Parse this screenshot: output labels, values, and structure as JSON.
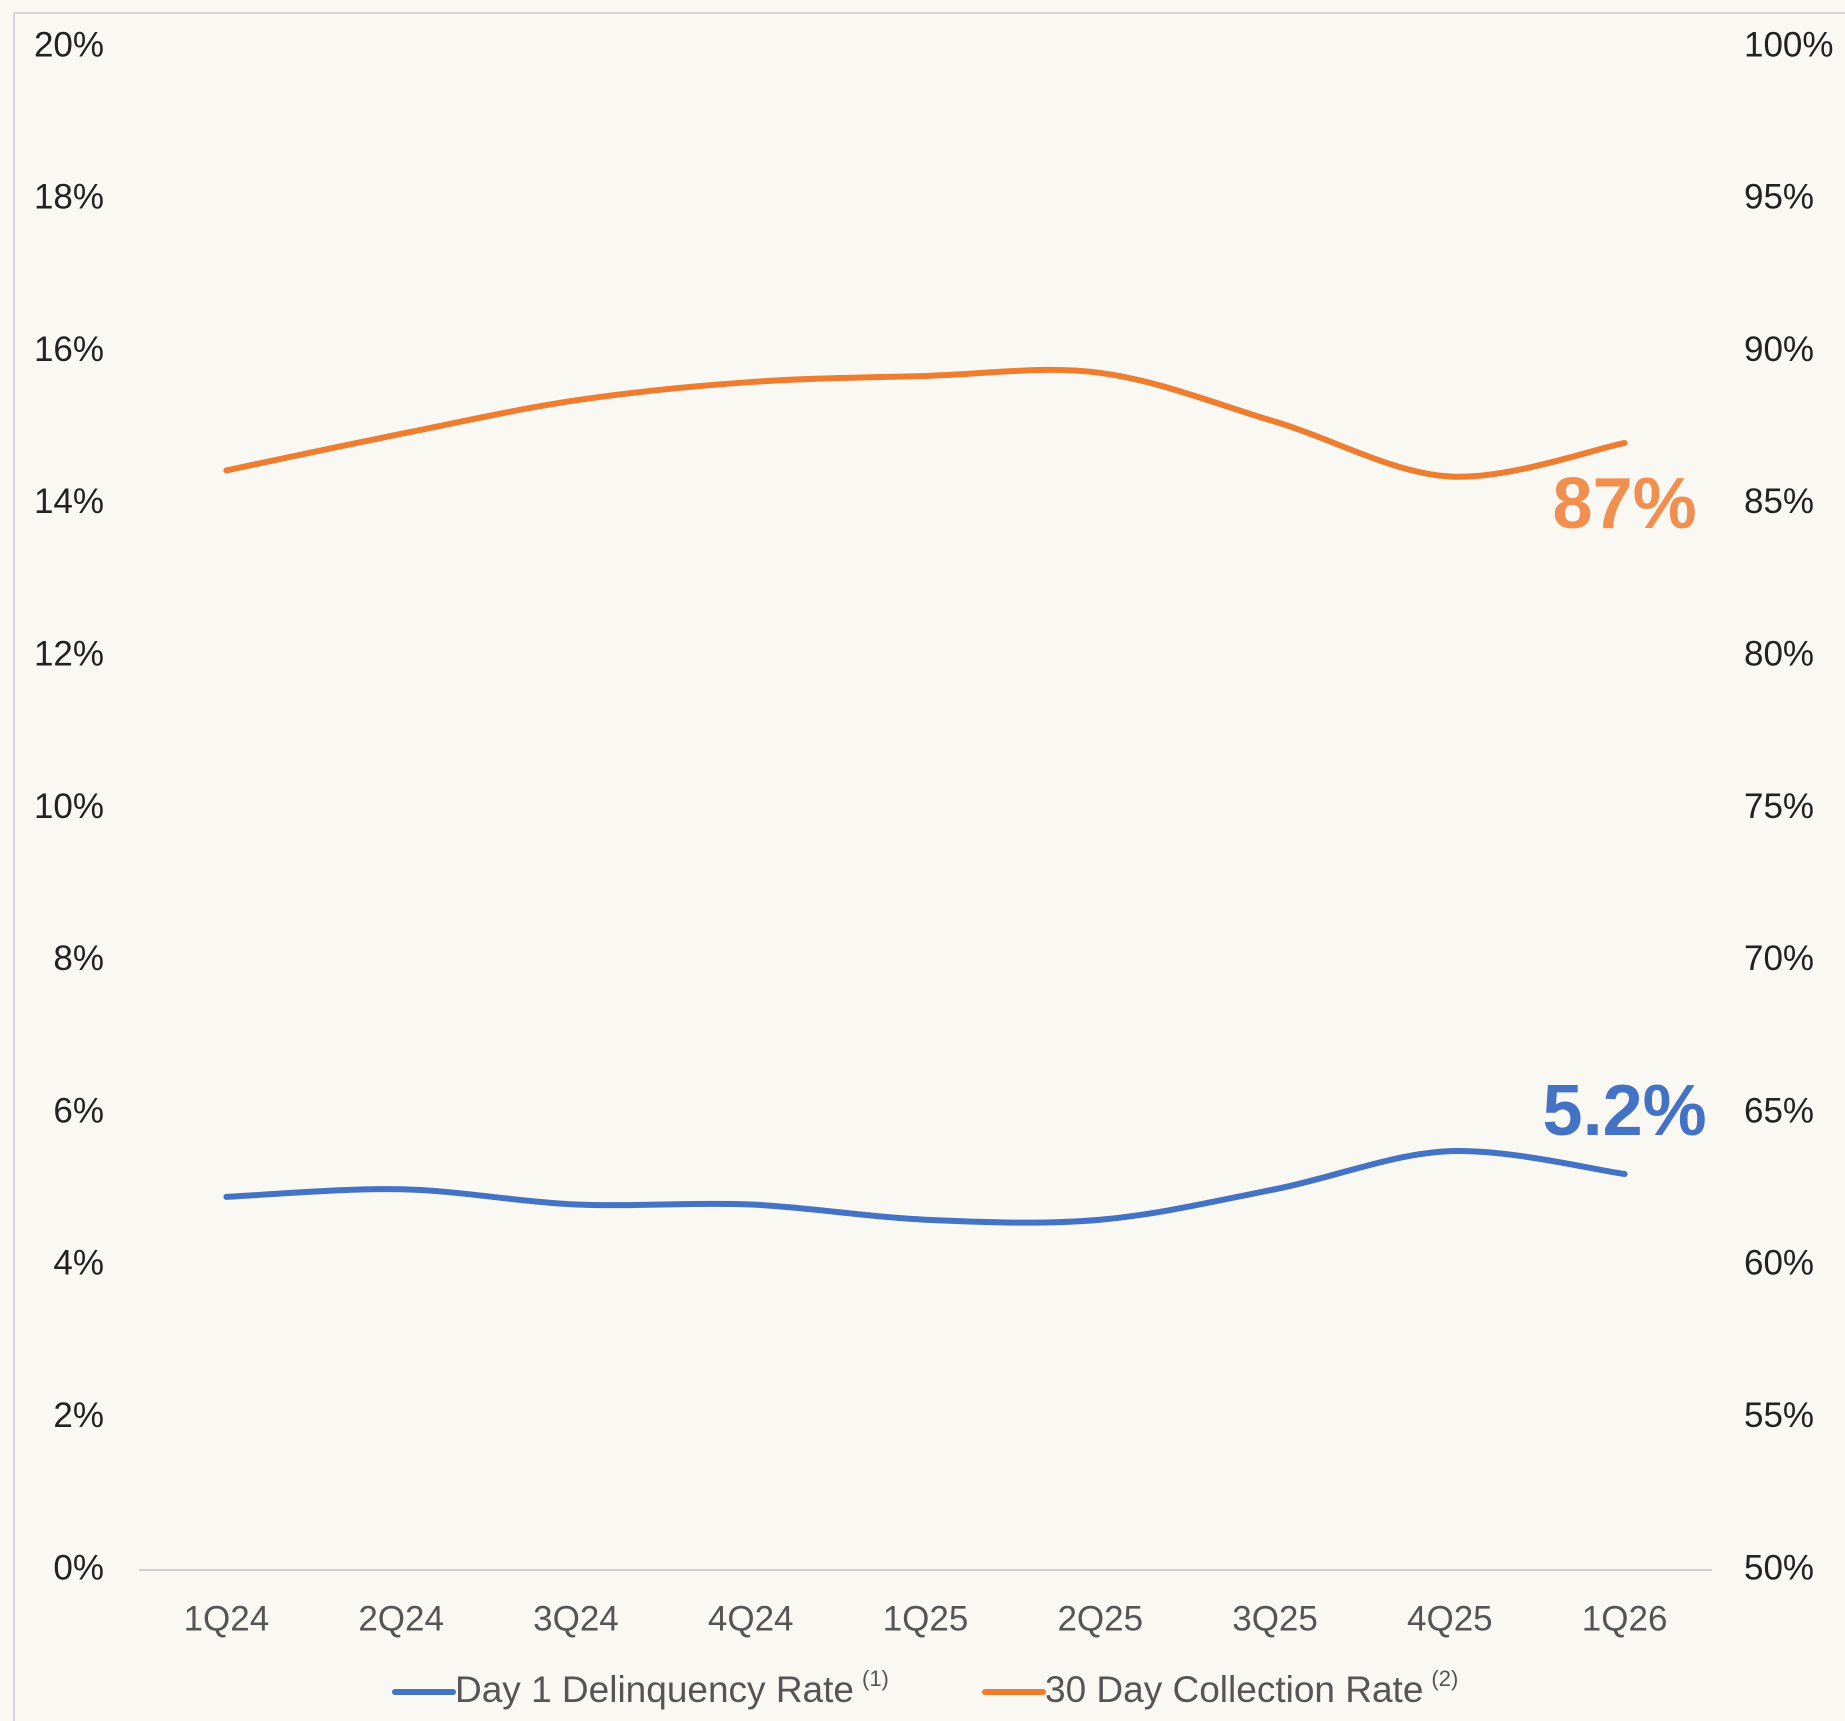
{
  "chart_data": {
    "type": "line",
    "categories": [
      "1Q24",
      "2Q24",
      "3Q24",
      "4Q24",
      "1Q25",
      "2Q25",
      "3Q25",
      "4Q25",
      "1Q26"
    ],
    "series": [
      {
        "name": "Day 1 Delinquency Rate",
        "note": "(1)",
        "color": "#4472c4",
        "values": [
          4.9,
          5.0,
          4.8,
          4.8,
          4.6,
          4.6,
          5.0,
          5.5,
          5.2
        ],
        "value_labels": [
          null,
          null,
          null,
          null,
          null,
          null,
          null,
          null,
          "5.2%"
        ]
      },
      {
        "name": "30 Day Collection Rate",
        "note": "(2)",
        "color": "#ed7d31",
        "axis": "y2",
        "values": [
          86.1,
          87.3,
          88.4,
          89.0,
          89.2,
          89.3,
          87.7,
          85.9,
          87
        ],
        "value_labels": [
          null,
          null,
          null,
          null,
          null,
          null,
          null,
          null,
          "87%"
        ]
      }
    ],
    "ylim": [
      0,
      20
    ],
    "yticks": [
      {
        "value": 0,
        "label": "0%"
      },
      {
        "value": 2,
        "label": "2%"
      },
      {
        "value": 4,
        "label": "4%"
      },
      {
        "value": 6,
        "label": "6%"
      },
      {
        "value": 8,
        "label": "8%"
      },
      {
        "value": 10,
        "label": "10%"
      },
      {
        "value": 12,
        "label": "12%"
      },
      {
        "value": 14,
        "label": "14%"
      },
      {
        "value": 16,
        "label": "16%"
      },
      {
        "value": 18,
        "label": "18%"
      },
      {
        "value": 20,
        "label": "20%"
      }
    ],
    "y2lim": [
      50,
      100
    ],
    "y2ticks": [
      {
        "value": 50,
        "label": "50%"
      },
      {
        "value": 55,
        "label": "55%"
      },
      {
        "value": 60,
        "label": "60%"
      },
      {
        "value": 65,
        "label": "65%"
      },
      {
        "value": 70,
        "label": "70%"
      },
      {
        "value": 75,
        "label": "75%"
      },
      {
        "value": 80,
        "label": "80%"
      },
      {
        "value": 85,
        "label": "85%"
      },
      {
        "value": 90,
        "label": "90%"
      },
      {
        "value": 95,
        "label": "95%"
      },
      {
        "value": 100,
        "label": "100%"
      }
    ],
    "grid": false,
    "legend": "bottom"
  }
}
